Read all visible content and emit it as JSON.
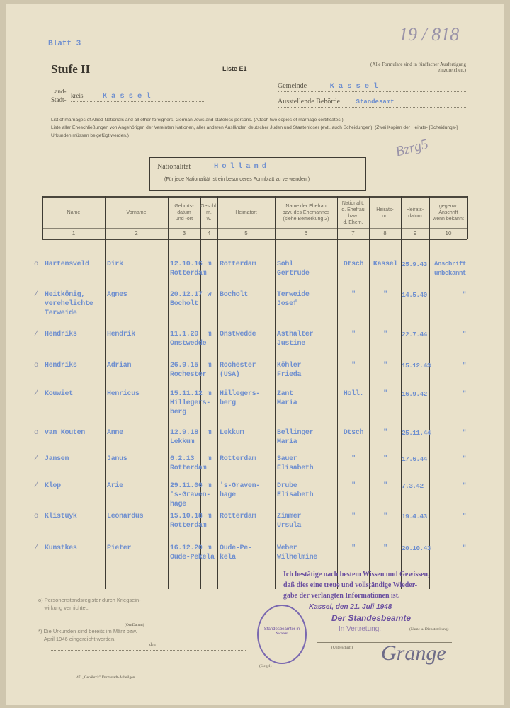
{
  "header": {
    "sheet_no": "Blatt 3",
    "stage": "Stufe II",
    "list_id": "Liste E1",
    "note": "(Alle Formulare sind in fünffacher Ausfertigung einzureichen.)",
    "handwritten_ref": "19 / 818",
    "land_label": "Land-",
    "stadt_label": "Stadt-",
    "kreis_label": "kreis",
    "kreis_value": "Kassel",
    "gemeinde_label": "Gemeinde",
    "gemeinde_value": "Kassel",
    "behoerde_label": "Ausstellende Behörde",
    "behoerde_value": "Standesamt",
    "desc_en": "List of marriages of Allied Nationals and all other foreigners, German Jews and stateless persons. (Attach two copies of marriage certificates.)",
    "desc_de": "Liste aller Eheschließungen von Angehörigen der Vereinten Nationen, aller anderen Ausländer, deutscher Juden und Staatenloser (evtl. auch Scheidungen). (Zwei Kopien der Heirats- [Scheidungs-] Urkunden müssen beigefügt werden.)",
    "handwritten_mark": "Bzrg5"
  },
  "nationality": {
    "label": "Nationalität",
    "value": "Holland",
    "note": "(Für jede Nationalität ist ein besonderes Formblatt zu verwenden.)"
  },
  "table": {
    "columns": [
      {
        "label": "Name",
        "num": "1"
      },
      {
        "label": "Vorname",
        "num": "2"
      },
      {
        "label": "Geburts-\ndatum\nund -ort",
        "num": "3"
      },
      {
        "label": "Geschl.\nm.\nw.",
        "num": "4"
      },
      {
        "label": "Heimatort",
        "num": "5"
      },
      {
        "label": "Name der Ehefrau\nbzw. des Ehemannes\n(siehe Bemerkung 2)",
        "num": "6"
      },
      {
        "label": "Nationalit.\nd. Ehefrau\nbzw.\nd. Ehem.",
        "num": "7"
      },
      {
        "label": "Heirats-\nort",
        "num": "8"
      },
      {
        "label": "Heirats-\ndatum",
        "num": "9"
      },
      {
        "label": "gegenw.\nAnschrift\nwenn bekannt",
        "num": "10"
      }
    ],
    "rows": [
      {
        "mark": "o",
        "cells": [
          "Hartensveld",
          "Dirk",
          "12.10.16\nRotterdam",
          "m",
          "Rotterdam",
          "Sohl\nGertrude",
          "Dtsch",
          "Kassel",
          "25.9.43",
          "Anschrift\nunbekannt"
        ]
      },
      {
        "mark": "/",
        "cells": [
          "Heitkönig,\nverehelichte\nTerweide",
          "Agnes",
          "20.12.17\nBocholt",
          "w",
          "Bocholt",
          "Terweide\nJosef",
          "\"",
          "\"",
          "14.5.40",
          "\""
        ]
      },
      {
        "mark": "/",
        "cells": [
          "Hendriks",
          "Hendrik",
          "11.1.20\nOnstwedde",
          "m",
          "Onstwedde",
          "Asthalter\nJustine",
          "\"",
          "\"",
          "22.7.44",
          "\""
        ]
      },
      {
        "mark": "o",
        "cells": [
          "Hendriks",
          "Adrian",
          "26.9.15\nRochester",
          "m",
          "Rochester\n(USA)",
          "Köhler\nFrieda",
          "\"",
          "\"",
          "15.12.43",
          "\""
        ]
      },
      {
        "mark": "/",
        "cells": [
          "Kouwiet",
          "Henricus",
          "15.11.12\nHillegers-\nberg",
          "m",
          "Hillegers-\nberg",
          "Zant\nMaria",
          "Holl.",
          "\"",
          "16.9.42",
          "\""
        ]
      },
      {
        "mark": "o",
        "cells": [
          "van Kouten",
          "Anne",
          "12.9.18\nLekkum",
          "m",
          "Lekkum",
          "Bellinger\nMaria",
          "Dtsch",
          "\"",
          "25.11.44",
          "\""
        ]
      },
      {
        "mark": "/",
        "cells": [
          "Jansen",
          "Janus",
          "6.2.13\nRotterdam",
          "m",
          "Rotterdam",
          "Sauer\nElisabeth",
          "\"",
          "\"",
          "17.6.44",
          "\""
        ]
      },
      {
        "mark": "/",
        "cells": [
          "Klop",
          "Arie",
          "29.11.06\n's-Graven-\nhage",
          "m",
          "'s-Graven-\nhage",
          "Drube\nElisabeth",
          "\"",
          "\"",
          "7.3.42",
          "\""
        ]
      },
      {
        "mark": "o",
        "cells": [
          "Klistuyk",
          "Leonardus",
          "15.10.18\nRotterdam",
          "m",
          "Rotterdam",
          "Zimmer\nUrsula",
          "\"",
          "\"",
          "19.4.43",
          "\""
        ]
      },
      {
        "mark": "/",
        "cells": [
          "Kunstkes",
          "Pieter",
          "16.12.20\nOude-Pekela",
          "m",
          "Oude-Pe-\nkela",
          "Weber\nWilhelmine",
          "\"",
          "\"",
          "20.10.43",
          "\""
        ]
      }
    ]
  },
  "footnotes": {
    "a": "o) Personenstandsregister durch Kriegsein-\n    wirkung vernichtet.",
    "b": "*) Die Urkunden sind bereits im März bzw.\n    April 1946 eingereicht worden."
  },
  "certification": {
    "text": "Ich bestätige nach bestem Wissen und Gewissen,\ndaß dies eine treue und vollständige Wieder-\ngabe der verlangten Informationen ist.",
    "place_date": "Kassel, den 21. Juli 1948",
    "official": "Der Standesbeamte",
    "deputy": "In Vertretung:",
    "signature": "Grange"
  },
  "form_labels": {
    "ort_datum": "(Ort/Datum)",
    "den": "den",
    "siegel": "(Siegel)",
    "unterschrift": "(Unterschrift)",
    "name_label": "(Name u. Dienststellung)",
    "printer": "47. „Gebäbrck\" Darmstadt-Arheilgen"
  },
  "stamp": {
    "text": "Standesbeamter in Kassel"
  },
  "colors": {
    "paper": "#e9e1ca",
    "typewriter_ink": "#6f8fcf",
    "stamp_ink": "#6a4fa0"
  }
}
